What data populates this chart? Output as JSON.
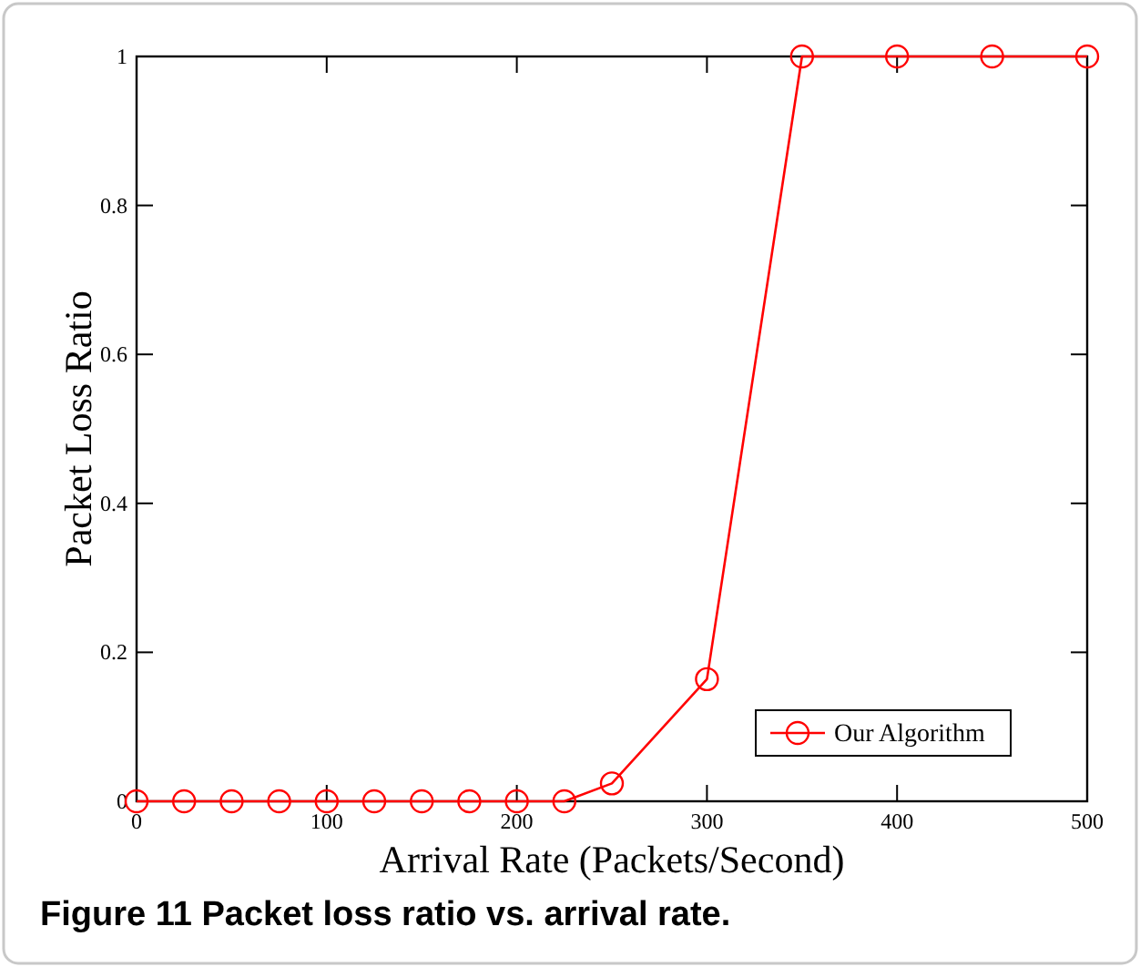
{
  "chart_data": {
    "type": "line",
    "xlabel": "Arrival Rate (Packets/Second)",
    "ylabel": "Packet Loss Ratio",
    "annotations": [
      "Figure 11 Packet loss ratio vs. arrival rate."
    ],
    "x": [
      0,
      25,
      50,
      75,
      100,
      125,
      150,
      175,
      200,
      225,
      250,
      300,
      350,
      400,
      450,
      500
    ],
    "series": [
      {
        "name": "Our Algorithm",
        "color": "#ff0000",
        "values": [
          0,
          0,
          0,
          0,
          0,
          0,
          0,
          0,
          0,
          0,
          0.024,
          0.164,
          1,
          1,
          1,
          1
        ]
      }
    ],
    "xlim": [
      0,
      500
    ],
    "ylim": [
      0,
      1
    ],
    "xticks": [
      0,
      100,
      200,
      300,
      400,
      500
    ],
    "yticks": [
      0,
      {
        "value": 0.2,
        "label": "0.2"
      },
      {
        "value": 0.4,
        "label": "0.4"
      },
      {
        "value": 0.6,
        "label": "0.6"
      },
      {
        "value": 0.8,
        "label": "0.8"
      },
      1
    ],
    "legend": "bottom right",
    "marker": "circle",
    "line_style": "solid",
    "grid": false
  }
}
